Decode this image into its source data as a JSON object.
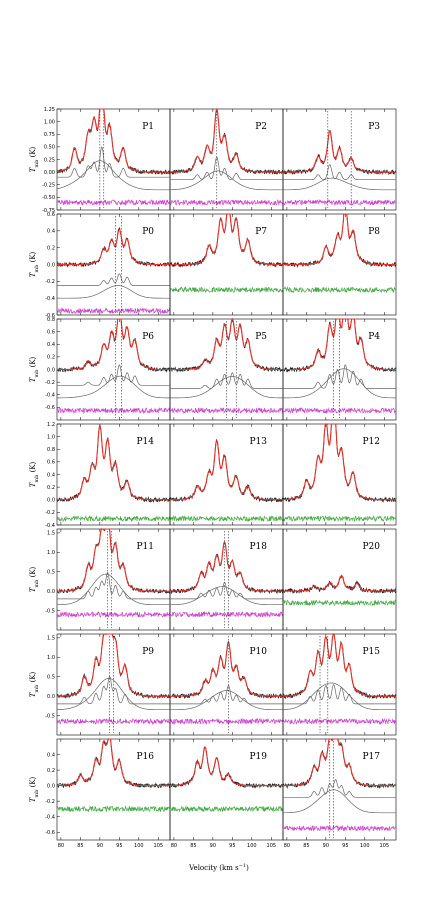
{
  "figure": {
    "x_label": "Velocity (km s",
    "x_label_sup": "−1",
    "x_label_end": ")",
    "y_label_main": "T",
    "y_label_sub": "mb",
    "y_label_unit": " (K)",
    "x_ticks": [
      "80",
      "85",
      "90",
      "95",
      "100",
      "105"
    ]
  },
  "colors": {
    "observed": "#222222",
    "fit": "#e8322a",
    "component": "#666666",
    "residual_magenta": "#cc44cc",
    "residual_green": "#44aa44"
  },
  "chart_data": [
    {
      "panel": "P1",
      "type": "line",
      "row": 0,
      "col": 0,
      "ylim": [
        -0.75,
        1.25
      ],
      "y_ticks": [
        "1.25",
        "1.00",
        "0.75",
        "0.50",
        "0.25",
        "0.00",
        "-0.25",
        "-0.50",
        "-0.75"
      ],
      "peaks": [
        [
          83.5,
          0.35
        ],
        [
          87,
          0.45
        ],
        [
          88.5,
          0.6
        ],
        [
          90.5,
          1.2
        ],
        [
          92.5,
          0.55
        ],
        [
          96,
          0.35
        ]
      ],
      "vlines": [
        90,
        91
      ],
      "components": [
        [
          -0.1,
          "narrow"
        ],
        [
          -0.35,
          "wide"
        ]
      ],
      "residual": {
        "offset": -0.6,
        "color": "magenta"
      }
    },
    {
      "panel": "P2",
      "type": "line",
      "row": 0,
      "col": 1,
      "ylim": [
        -0.75,
        1.25
      ],
      "peaks": [
        [
          86,
          0.2
        ],
        [
          88.5,
          0.3
        ],
        [
          91,
          0.9
        ],
        [
          93,
          0.45
        ],
        [
          96,
          0.25
        ]
      ],
      "vlines": [
        91
      ],
      "components": [
        [
          -0.15,
          "narrow"
        ],
        [
          -0.35,
          "wide"
        ]
      ],
      "residual": {
        "offset": -0.6,
        "color": "magenta"
      }
    },
    {
      "panel": "P3",
      "type": "line",
      "row": 0,
      "col": 2,
      "ylim": [
        -0.75,
        1.25
      ],
      "peaks": [
        [
          88,
          0.2
        ],
        [
          91,
          0.6
        ],
        [
          93.5,
          0.3
        ],
        [
          96.5,
          0.2
        ]
      ],
      "vlines": [
        90.5,
        96.5
      ],
      "components": [
        [
          -0.15,
          "narrow"
        ],
        [
          -0.35,
          "wide"
        ]
      ],
      "residual": {
        "offset": -0.6,
        "color": "magenta"
      }
    },
    {
      "panel": "P0",
      "type": "line",
      "row": 1,
      "col": 0,
      "ylim": [
        -0.6,
        0.6
      ],
      "y_ticks": [
        "0.6",
        "0.4",
        "0.2",
        "0.0",
        "-0.2",
        "-0.4",
        "-0.6"
      ],
      "peaks": [
        [
          91,
          0.12
        ],
        [
          93,
          0.18
        ],
        [
          95,
          0.28
        ],
        [
          97,
          0.2
        ]
      ],
      "vlines": [
        94,
        95.5
      ],
      "components": [
        [
          -0.25,
          "narrow"
        ],
        [
          -0.4,
          "wide"
        ]
      ],
      "residual": {
        "offset": -0.55,
        "color": "magenta"
      }
    },
    {
      "panel": "P7",
      "type": "line",
      "row": 1,
      "col": 1,
      "ylim": [
        -0.6,
        0.6
      ],
      "peaks": [
        [
          89,
          0.15
        ],
        [
          92,
          0.35
        ],
        [
          94,
          0.48
        ],
        [
          96,
          0.35
        ],
        [
          99,
          0.2
        ]
      ],
      "vlines": [],
      "components": [],
      "residual": {
        "offset": -0.3,
        "color": "green"
      }
    },
    {
      "panel": "P8",
      "type": "line",
      "row": 1,
      "col": 2,
      "ylim": [
        -0.6,
        0.6
      ],
      "peaks": [
        [
          90,
          0.15
        ],
        [
          93,
          0.2
        ],
        [
          95,
          0.5
        ],
        [
          97,
          0.25
        ]
      ],
      "vlines": [],
      "components": [],
      "residual": {
        "offset": -0.3,
        "color": "green"
      }
    },
    {
      "panel": "P6",
      "type": "line",
      "row": 2,
      "col": 0,
      "ylim": [
        -0.8,
        0.8
      ],
      "y_ticks": [
        "0.8",
        "0.6",
        "0.4",
        "0.2",
        "0.0",
        "-0.2",
        "-0.4",
        "-0.6"
      ],
      "peaks": [
        [
          87,
          0.1
        ],
        [
          91,
          0.25
        ],
        [
          93,
          0.35
        ],
        [
          95,
          0.65
        ],
        [
          97,
          0.4
        ],
        [
          99,
          0.3
        ]
      ],
      "vlines": [
        94,
        95.5
      ],
      "components": [
        [
          -0.25,
          "narrow"
        ],
        [
          -0.45,
          "wide"
        ]
      ],
      "residual": {
        "offset": -0.65,
        "color": "magenta"
      }
    },
    {
      "panel": "P5",
      "type": "line",
      "row": 2,
      "col": 1,
      "ylim": [
        -0.8,
        0.8
      ],
      "peaks": [
        [
          88,
          0.1
        ],
        [
          91,
          0.3
        ],
        [
          93,
          0.45
        ],
        [
          95,
          0.5
        ],
        [
          97,
          0.45
        ],
        [
          99,
          0.3
        ]
      ],
      "vlines": [
        93.5,
        96
      ],
      "components": [
        [
          -0.3,
          "narrow"
        ],
        [
          -0.45,
          "wide"
        ]
      ],
      "residual": {
        "offset": -0.65,
        "color": "magenta"
      }
    },
    {
      "panel": "P4",
      "type": "line",
      "row": 2,
      "col": 2,
      "ylim": [
        -0.8,
        0.8
      ],
      "peaks": [
        [
          88,
          0.2
        ],
        [
          91,
          0.45
        ],
        [
          93,
          0.6
        ],
        [
          95,
          0.75
        ],
        [
          97,
          0.55
        ],
        [
          99,
          0.3
        ]
      ],
      "vlines": [
        92,
        93.5
      ],
      "components": [
        [
          -0.3,
          "narrow"
        ],
        [
          -0.45,
          "wide"
        ]
      ],
      "residual": {
        "offset": -0.65,
        "color": "magenta"
      }
    },
    {
      "panel": "P14",
      "type": "line",
      "row": 3,
      "col": 0,
      "ylim": [
        -0.4,
        1.2
      ],
      "y_ticks": [
        "1.2",
        "1.0",
        "0.8",
        "0.6",
        "0.4",
        "0.2",
        "0.0",
        "-0.2",
        "-0.4"
      ],
      "peaks": [
        [
          86,
          0.2
        ],
        [
          88,
          0.3
        ],
        [
          90,
          0.8
        ],
        [
          92,
          0.6
        ],
        [
          94,
          0.35
        ],
        [
          97,
          0.2
        ]
      ],
      "vlines": [],
      "components": [],
      "residual": {
        "offset": -0.3,
        "color": "green"
      }
    },
    {
      "panel": "P13",
      "type": "line",
      "row": 3,
      "col": 1,
      "ylim": [
        -0.4,
        1.2
      ],
      "peaks": [
        [
          86,
          0.15
        ],
        [
          89,
          0.25
        ],
        [
          91,
          0.65
        ],
        [
          93,
          0.45
        ],
        [
          96,
          0.25
        ],
        [
          99,
          0.15
        ]
      ],
      "vlines": [],
      "components": [],
      "residual": {
        "offset": -0.3,
        "color": "green"
      }
    },
    {
      "panel": "P12",
      "type": "line",
      "row": 3,
      "col": 2,
      "ylim": [
        -0.4,
        1.2
      ],
      "peaks": [
        [
          85,
          0.2
        ],
        [
          88,
          0.4
        ],
        [
          90,
          0.75
        ],
        [
          92,
          1.15
        ],
        [
          94,
          0.45
        ],
        [
          97,
          0.3
        ]
      ],
      "vlines": [],
      "components": [],
      "residual": {
        "offset": -0.3,
        "color": "green"
      }
    },
    {
      "panel": "P11",
      "type": "line",
      "row": 4,
      "col": 0,
      "ylim": [
        -1.0,
        1.6
      ],
      "y_ticks": [
        "1.5",
        "1.0",
        "0.5",
        "0.0",
        "-0.5"
      ],
      "peaks": [
        [
          87,
          0.4
        ],
        [
          89,
          0.6
        ],
        [
          90.5,
          0.9
        ],
        [
          92,
          1.35
        ],
        [
          94,
          0.7
        ],
        [
          96,
          0.4
        ]
      ],
      "vlines": [
        92,
        93
      ],
      "components": [
        [
          -0.2,
          "narrow"
        ],
        [
          -0.35,
          "wide"
        ]
      ],
      "residual": {
        "offset": -0.6,
        "color": "magenta"
      }
    },
    {
      "panel": "P18",
      "type": "line",
      "row": 4,
      "col": 1,
      "ylim": [
        -1.0,
        1.6
      ],
      "peaks": [
        [
          87,
          0.3
        ],
        [
          89,
          0.45
        ],
        [
          91,
          0.55
        ],
        [
          93,
          0.85
        ],
        [
          95,
          0.45
        ],
        [
          97,
          0.3
        ]
      ],
      "vlines": [
        93,
        94
      ],
      "components": [
        [
          -0.2,
          "narrow"
        ],
        [
          -0.35,
          "wide"
        ]
      ],
      "residual": {
        "offset": -0.6,
        "color": "magenta"
      }
    },
    {
      "panel": "P20",
      "type": "line",
      "row": 4,
      "col": 2,
      "ylim": [
        -1.0,
        1.6
      ],
      "peaks": [
        [
          87,
          0.1
        ],
        [
          91,
          0.15
        ],
        [
          94,
          0.3
        ],
        [
          98,
          0.15
        ]
      ],
      "vlines": [],
      "components": [],
      "residual": {
        "offset": -0.3,
        "color": "green"
      }
    },
    {
      "panel": "P9",
      "type": "line",
      "row": 5,
      "col": 0,
      "ylim": [
        -1.0,
        1.6
      ],
      "y_ticks": [
        "1.5",
        "1.0",
        "0.5",
        "0.0",
        "-0.5"
      ],
      "peaks": [
        [
          86,
          0.35
        ],
        [
          89,
          0.55
        ],
        [
          91,
          0.9
        ],
        [
          92.5,
          1.4
        ],
        [
          94,
          0.8
        ],
        [
          96.5,
          0.5
        ]
      ],
      "vlines": [
        92.5,
        93.5
      ],
      "components": [
        [
          -0.2,
          "narrow"
        ],
        [
          -0.35,
          "wide"
        ]
      ],
      "residual": {
        "offset": -0.65,
        "color": "magenta"
      }
    },
    {
      "panel": "P10",
      "type": "line",
      "row": 5,
      "col": 1,
      "ylim": [
        -1.0,
        1.6
      ],
      "peaks": [
        [
          88,
          0.25
        ],
        [
          90,
          0.4
        ],
        [
          92,
          0.6
        ],
        [
          94,
          0.95
        ],
        [
          96,
          0.45
        ],
        [
          98,
          0.3
        ]
      ],
      "vlines": [
        94
      ],
      "components": [
        [
          -0.2,
          "narrow"
        ],
        [
          -0.35,
          "wide"
        ]
      ],
      "residual": {
        "offset": -0.65,
        "color": "magenta"
      }
    },
    {
      "panel": "P15",
      "type": "line",
      "row": 5,
      "col": 2,
      "ylim": [
        -1.0,
        1.6
      ],
      "peaks": [
        [
          86,
          0.4
        ],
        [
          88,
          0.7
        ],
        [
          90,
          0.95
        ],
        [
          92,
          1.0
        ],
        [
          94,
          0.85
        ],
        [
          96,
          0.5
        ]
      ],
      "vlines": [
        88.5,
        90.5
      ],
      "components": [
        [
          -0.2,
          "narrow"
        ],
        [
          -0.35,
          "wide"
        ]
      ],
      "residual": {
        "offset": -0.65,
        "color": "magenta"
      }
    },
    {
      "panel": "P16",
      "type": "line",
      "row": 6,
      "col": 0,
      "ylim": [
        -0.7,
        0.6
      ],
      "y_ticks": [
        "0.4",
        "0.2",
        "0.0",
        "-0.2",
        "-0.4",
        "-0.6"
      ],
      "peaks": [
        [
          85,
          0.1
        ],
        [
          89,
          0.2
        ],
        [
          91,
          0.35
        ],
        [
          92.5,
          0.42
        ],
        [
          95,
          0.2
        ]
      ],
      "vlines": [],
      "components": [],
      "residual": {
        "offset": -0.3,
        "color": "green"
      }
    },
    {
      "panel": "P19",
      "type": "line",
      "row": 6,
      "col": 1,
      "ylim": [
        -0.7,
        0.6
      ],
      "peaks": [
        [
          86,
          0.2
        ],
        [
          88,
          0.35
        ],
        [
          91,
          0.25
        ],
        [
          94,
          0.1
        ]
      ],
      "vlines": [],
      "components": [],
      "residual": {
        "offset": -0.3,
        "color": "green"
      }
    },
    {
      "panel": "P17",
      "type": "line",
      "row": 6,
      "col": 2,
      "ylim": [
        -0.7,
        0.6
      ],
      "peaks": [
        [
          87,
          0.15
        ],
        [
          89,
          0.25
        ],
        [
          91,
          0.35
        ],
        [
          92.5,
          0.45
        ],
        [
          94,
          0.3
        ],
        [
          96,
          0.15
        ]
      ],
      "vlines": [
        91,
        92
      ],
      "components": [
        [
          -0.15,
          "narrow"
        ],
        [
          -0.35,
          "wide"
        ]
      ],
      "residual": {
        "offset": -0.55,
        "color": "magenta"
      }
    }
  ]
}
